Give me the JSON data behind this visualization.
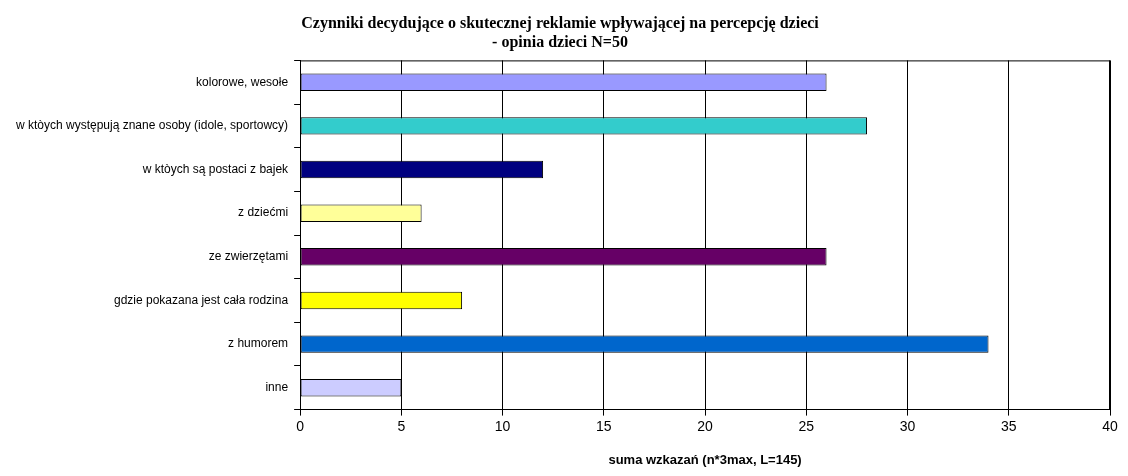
{
  "chart_data": {
    "type": "bar",
    "orientation": "horizontal",
    "title": "Czynniki decydujące o skutecznej reklamie wpływającej na percepcję dzieci - opinia dzieci N=50",
    "xlabel": "suma wzkazań (n*3max, L=145)",
    "categories": [
      "kolorowe, wesołe",
      "w ktòych występują znane osoby (idole, sportowcy)",
      "w ktòych są postaci z bajek",
      "z dziećmi",
      "ze zwierzętami",
      "gdzie pokazana jest cała rodzina",
      "z humorem",
      "inne"
    ],
    "values": [
      26,
      28,
      12,
      6,
      26,
      8,
      34,
      5
    ],
    "colors": [
      "#9999ff",
      "#33cccc",
      "#000080",
      "#ffff99",
      "#660066",
      "#ffff00",
      "#0066cc",
      "#ccccff"
    ],
    "xlim": [
      0,
      40
    ],
    "xticks": [
      0,
      5,
      10,
      15,
      20,
      25,
      30,
      35,
      40
    ],
    "grid": "x",
    "legend": false
  }
}
